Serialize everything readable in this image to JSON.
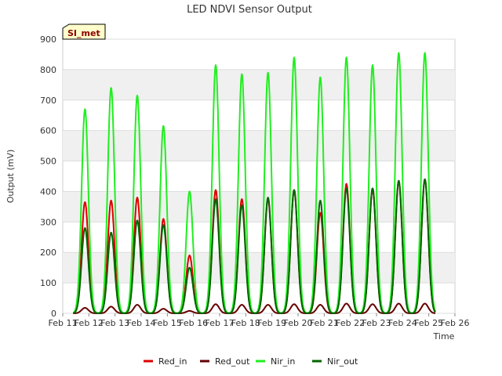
{
  "chart_data": {
    "type": "line",
    "title": "LED NDVI Sensor Output",
    "xlabel": "Time",
    "ylabel": "Output (mV)",
    "site_label": "SI_met",
    "x_ticks": [
      "Feb 11",
      "Feb 12",
      "Feb 13",
      "Feb 14",
      "Feb 15",
      "Feb 16",
      "Feb 17",
      "Feb 18",
      "Feb 19",
      "Feb 20",
      "Feb 21",
      "Feb 22",
      "Feb 23",
      "Feb 24",
      "Feb 25",
      "Feb 26"
    ],
    "xlim": [
      11,
      26
    ],
    "ylim": [
      0,
      900
    ],
    "y_ticks": [
      0,
      100,
      200,
      300,
      400,
      500,
      600,
      700,
      800,
      900
    ],
    "grid": "horizontal bands",
    "legend_position": "bottom",
    "daily_peaks": {
      "days": [
        11.85,
        12.85,
        13.85,
        14.85,
        15.85,
        16.85,
        17.85,
        18.85,
        19.85,
        20.85,
        21.85,
        22.85,
        23.85,
        24.85
      ],
      "Red_in": [
        365,
        370,
        380,
        310,
        190,
        405,
        375,
        375,
        405,
        330,
        425,
        410,
        435,
        440
      ],
      "Red_out": [
        18,
        22,
        28,
        15,
        8,
        30,
        28,
        28,
        30,
        28,
        32,
        30,
        32,
        32
      ],
      "Nir_in": [
        670,
        740,
        715,
        615,
        400,
        815,
        785,
        790,
        840,
        775,
        840,
        815,
        855,
        855
      ],
      "Nir_out": [
        280,
        265,
        305,
        290,
        150,
        375,
        355,
        380,
        405,
        370,
        410,
        410,
        435,
        440
      ]
    },
    "series": [
      {
        "name": "Red_in",
        "color": "#dd0000"
      },
      {
        "name": "Red_out",
        "color": "#660000"
      },
      {
        "name": "Nir_in",
        "color": "#22ee22"
      },
      {
        "name": "Nir_out",
        "color": "#006600"
      }
    ]
  }
}
